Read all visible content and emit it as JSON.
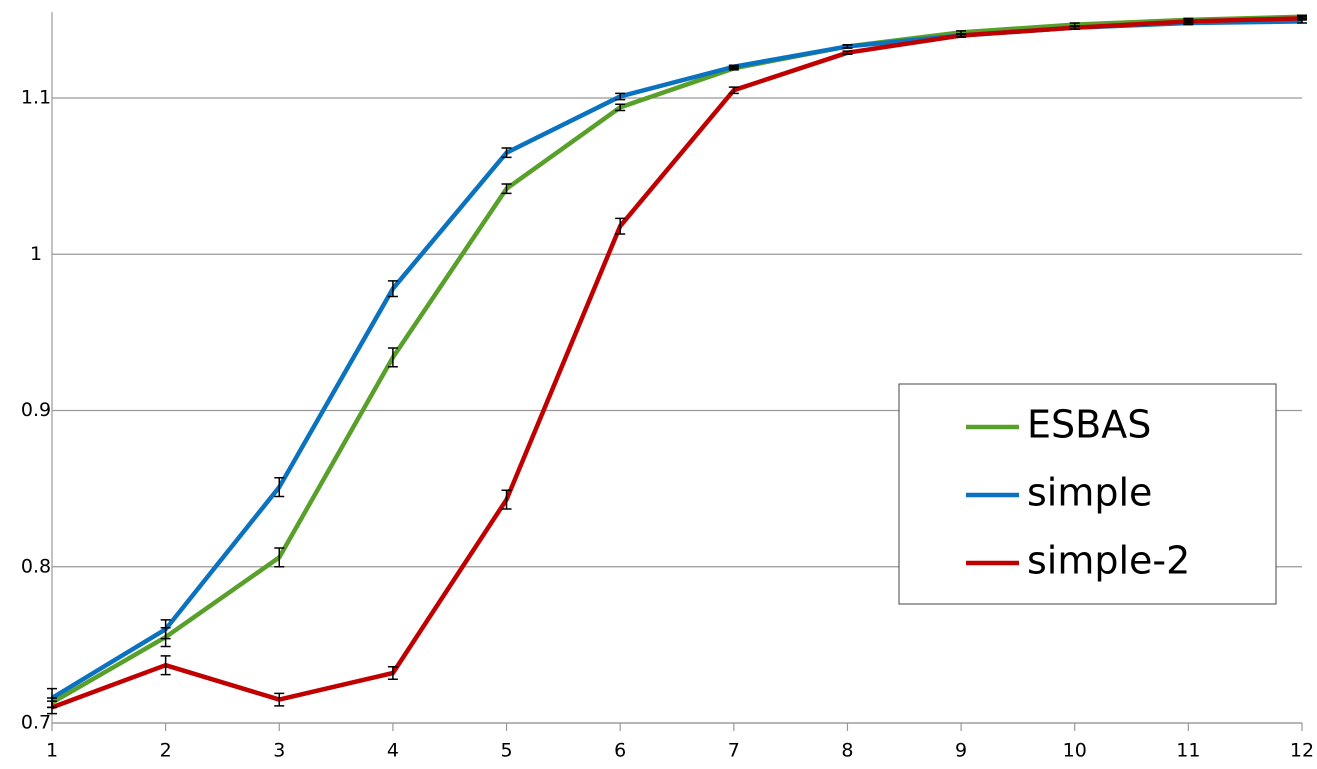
{
  "chart_data": {
    "type": "line",
    "x": [
      1,
      2,
      3,
      4,
      5,
      6,
      7,
      8,
      9,
      10,
      11,
      12
    ],
    "xlim": [
      1,
      12
    ],
    "xticks": [
      1,
      2,
      3,
      4,
      5,
      6,
      7,
      8,
      9,
      10,
      11,
      12
    ],
    "ylim": [
      0.7,
      1.155
    ],
    "yticks": [
      0.7,
      0.8,
      0.9,
      1,
      1.1
    ],
    "grid": true,
    "legend": "right",
    "series": [
      {
        "name": "ESBAS",
        "color": "#58a02a",
        "values": [
          0.713,
          0.755,
          0.806,
          0.934,
          1.042,
          1.094,
          1.119,
          1.133,
          1.142,
          1.147,
          1.15,
          1.152
        ],
        "errors": [
          0.003,
          0.006,
          0.006,
          0.006,
          0.003,
          0.002,
          0.001,
          0.001,
          0.001,
          0.001,
          0.001,
          0.001
        ]
      },
      {
        "name": "simple",
        "color": "#0b72c0",
        "values": [
          0.716,
          0.76,
          0.851,
          0.978,
          1.065,
          1.101,
          1.12,
          1.133,
          1.14,
          1.145,
          1.148,
          1.149
        ],
        "errors": [
          0.006,
          0.006,
          0.006,
          0.005,
          0.003,
          0.002,
          0.001,
          0.001,
          0.001,
          0.001,
          0.001,
          0.001
        ]
      },
      {
        "name": "simple-2",
        "color": "#c00000",
        "values": [
          0.71,
          0.737,
          0.715,
          0.732,
          0.843,
          1.018,
          1.105,
          1.129,
          1.14,
          1.145,
          1.149,
          1.151
        ],
        "errors": [
          0.004,
          0.006,
          0.004,
          0.004,
          0.006,
          0.005,
          0.002,
          0.001,
          0.001,
          0.001,
          0.001,
          0.001
        ]
      }
    ]
  }
}
